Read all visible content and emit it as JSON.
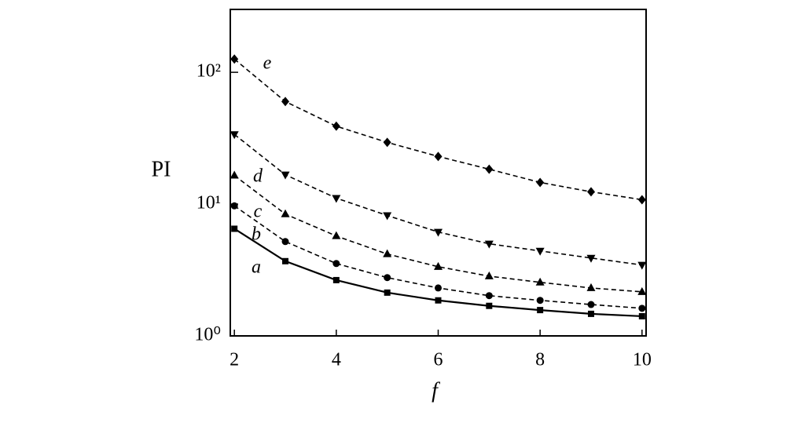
{
  "chart_data": {
    "type": "line",
    "x_label": "f",
    "y_label": "PI",
    "x": [
      2,
      3,
      4,
      5,
      6,
      7,
      8,
      9,
      10
    ],
    "xlim": [
      1.92,
      10.08
    ],
    "xticks": [
      2,
      4,
      6,
      8,
      10
    ],
    "ylim": [
      1,
      300
    ],
    "y_log": true,
    "yticks": [
      {
        "value": 1,
        "label": "10⁰"
      },
      {
        "value": 10,
        "label": "10¹"
      },
      {
        "value": 100,
        "label": "10²"
      }
    ],
    "series": [
      {
        "name": "a",
        "color": "#000000",
        "dash": false,
        "marker": "square",
        "values": [
          6.5,
          3.69,
          2.65,
          2.13,
          1.86,
          1.69,
          1.57,
          1.47,
          1.41
        ]
      },
      {
        "name": "b",
        "color": "#000000",
        "dash": true,
        "marker": "circle",
        "values": [
          9.7,
          5.2,
          3.54,
          2.77,
          2.31,
          2.02,
          1.86,
          1.73,
          1.62
        ]
      },
      {
        "name": "c",
        "color": "#000000",
        "dash": true,
        "marker": "triangle-up",
        "values": [
          16.5,
          8.4,
          5.73,
          4.18,
          3.35,
          2.84,
          2.55,
          2.31,
          2.16
        ]
      },
      {
        "name": "d",
        "color": "#000000",
        "dash": true,
        "marker": "triangle-down",
        "values": [
          33.8,
          16.7,
          11.1,
          8.2,
          6.14,
          5.0,
          4.41,
          3.9,
          3.45
        ]
      },
      {
        "name": "e",
        "color": "#000000",
        "dash": true,
        "marker": "diamond",
        "values": [
          126,
          60,
          39,
          29.4,
          23,
          18.4,
          14.6,
          12.4,
          10.8
        ]
      }
    ]
  }
}
